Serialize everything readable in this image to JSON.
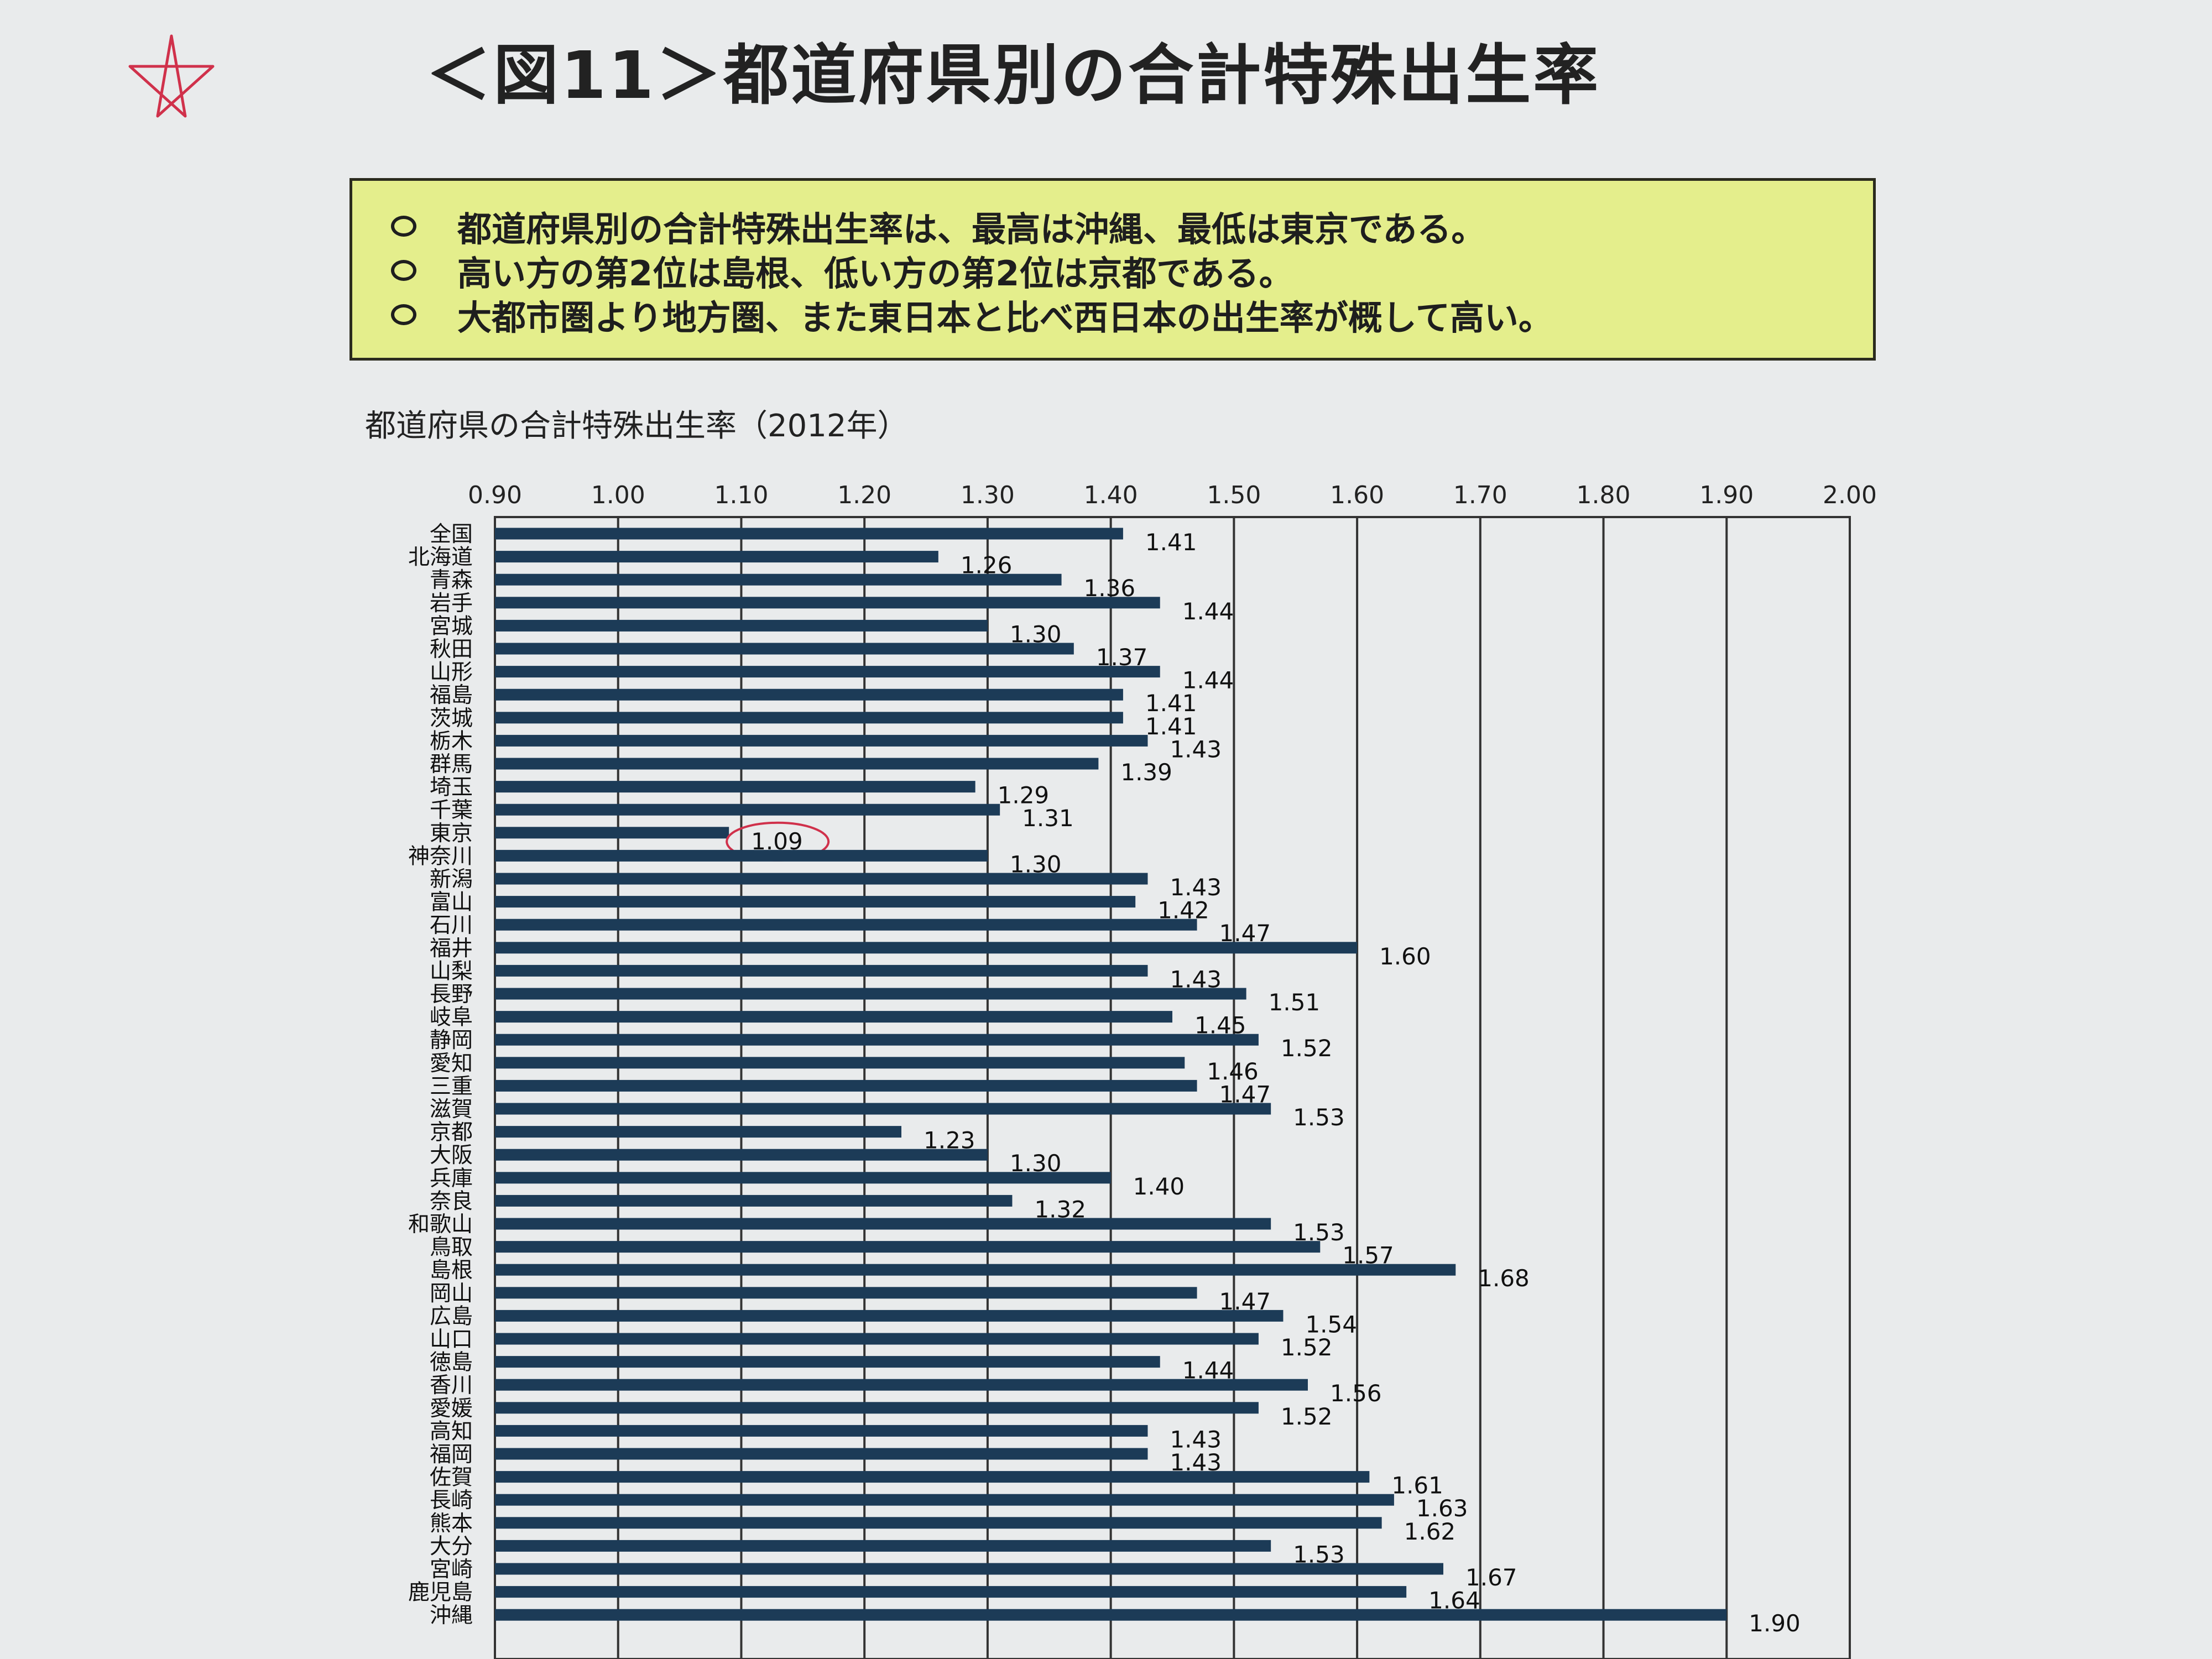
{
  "figure_title": "＜図11＞都道府県別の合計特殊出生率",
  "summary": [
    "都道府県別の合計特殊出生率は、最高は沖縄、最低は東京である。",
    "高い方の第2位は島根、低い方の第2位は京都である。",
    "大都市圏より地方圏、また東日本と比べ西日本の出生率が概して高い。"
  ],
  "colors": {
    "bar": "#1c3b57",
    "summary_bg": "#e4ee8c",
    "annotation": "#d0314b"
  },
  "chart_data": {
    "type": "bar",
    "orientation": "horizontal",
    "title": "都道府県の合計特殊出生率（2012年）",
    "xlim": [
      0.9,
      2.0
    ],
    "x_ticks": [
      "0.90",
      "1.00",
      "1.10",
      "1.20",
      "1.30",
      "1.40",
      "1.50",
      "1.60",
      "1.70",
      "1.80",
      "1.90",
      "2.00"
    ],
    "grid": true,
    "highlighted_category": "東京",
    "categories": [
      "全国",
      "北海道",
      "青森",
      "岩手",
      "宮城",
      "秋田",
      "山形",
      "福島",
      "茨城",
      "栃木",
      "群馬",
      "埼玉",
      "千葉",
      "東京",
      "神奈川",
      "新潟",
      "富山",
      "石川",
      "福井",
      "山梨",
      "長野",
      "岐阜",
      "静岡",
      "愛知",
      "三重",
      "滋賀",
      "京都",
      "大阪",
      "兵庫",
      "奈良",
      "和歌山",
      "鳥取",
      "島根",
      "岡山",
      "広島",
      "山口",
      "徳島",
      "香川",
      "愛媛",
      "高知",
      "福岡",
      "佐賀",
      "長崎",
      "熊本",
      "大分",
      "宮崎",
      "鹿児島",
      "沖縄"
    ],
    "values": [
      1.41,
      1.26,
      1.36,
      1.44,
      1.3,
      1.37,
      1.44,
      1.41,
      1.41,
      1.43,
      1.39,
      1.29,
      1.31,
      1.09,
      1.3,
      1.43,
      1.42,
      1.47,
      1.6,
      1.43,
      1.51,
      1.45,
      1.52,
      1.46,
      1.47,
      1.53,
      1.23,
      1.3,
      1.4,
      1.32,
      1.53,
      1.57,
      1.68,
      1.47,
      1.54,
      1.52,
      1.44,
      1.56,
      1.52,
      1.43,
      1.43,
      1.61,
      1.63,
      1.62,
      1.53,
      1.67,
      1.64,
      1.9
    ],
    "value_labels": [
      "1.41",
      "1.26",
      "1.36",
      "1.44",
      "1.30",
      "1.37",
      "1.44",
      "1.41",
      "1.41",
      "1.43",
      "1.39",
      "1.29",
      "1.31",
      "1.09",
      "1.30",
      "1.43",
      "1.42",
      "1.47",
      "1.60",
      "1.43",
      "1.51",
      "1.45",
      "1.52",
      "1.46",
      "1.47",
      "1.53",
      "1.23",
      "1.30",
      "1.40",
      "1.32",
      "1.53",
      "1.57",
      "1.68",
      "1.47",
      "1.54",
      "1.52",
      "1.44",
      "1.56",
      "1.52",
      "1.43",
      "1.43",
      "1.61",
      "1.63",
      "1.62",
      "1.53",
      "1.67",
      "1.64",
      "1.90"
    ]
  }
}
